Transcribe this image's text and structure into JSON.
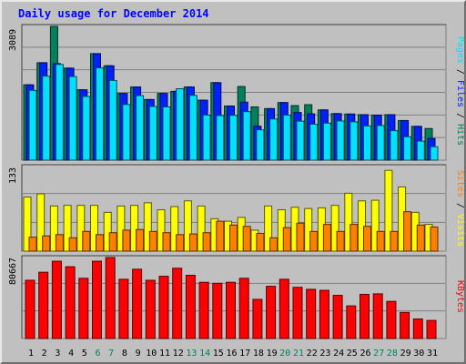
{
  "title": "Daily usage for December 2014",
  "colors": {
    "hits": "#00805c",
    "files": "#0020ff",
    "pages": "#00e0ff",
    "visits": "#ffff00",
    "sites": "#ff8000",
    "kbytes": "#ff0000",
    "weekend_day_label": "#00805c",
    "weekday_label": "#000000"
  },
  "chart_data": [
    {
      "type": "bar",
      "name": "hits-files-pages",
      "categories": [
        "1",
        "2",
        "3",
        "4",
        "5",
        "6",
        "7",
        "8",
        "9",
        "10",
        "11",
        "12",
        "13",
        "14",
        "15",
        "16",
        "17",
        "18",
        "19",
        "20",
        "21",
        "22",
        "23",
        "24",
        "25",
        "26",
        "27",
        "28",
        "29",
        "30",
        "31"
      ],
      "weekend_days": [
        "6",
        "7",
        "13",
        "14",
        "20",
        "21",
        "27",
        "28"
      ],
      "y_max_label": "3089",
      "ylim": [
        0,
        3089
      ],
      "axis_label_parts": [
        "Pages",
        "Files",
        "Hits"
      ],
      "series": [
        {
          "name": "Hits",
          "color": "#00805c",
          "values": [
            1740,
            2250,
            3089,
            2125,
            1625,
            2460,
            2180,
            1540,
            1690,
            1400,
            1540,
            1590,
            1690,
            1385,
            1790,
            1250,
            1700,
            1230,
            1190,
            1330,
            1260,
            1280,
            1160,
            1075,
            1065,
            1050,
            1040,
            1050,
            915,
            780,
            730
          ]
        },
        {
          "name": "Files",
          "color": "#0020ff",
          "values": [
            1740,
            2250,
            2230,
            2125,
            1625,
            2460,
            2180,
            1540,
            1690,
            1400,
            1540,
            1590,
            1690,
            1385,
            1790,
            1250,
            1340,
            785,
            1190,
            1330,
            1100,
            1070,
            1160,
            1075,
            1065,
            1050,
            1040,
            1050,
            915,
            780,
            500
          ]
        },
        {
          "name": "Pages",
          "color": "#00e0ff",
          "values": [
            1610,
            1940,
            2210,
            1930,
            1470,
            2130,
            1840,
            1285,
            1490,
            1240,
            1230,
            1650,
            1495,
            1040,
            1030,
            1035,
            1120,
            700,
            950,
            1040,
            900,
            830,
            855,
            905,
            885,
            790,
            800,
            680,
            540,
            440,
            310
          ]
        }
      ]
    },
    {
      "type": "bar",
      "name": "visits-sites",
      "categories": [
        "1",
        "2",
        "3",
        "4",
        "5",
        "6",
        "7",
        "8",
        "9",
        "10",
        "11",
        "12",
        "13",
        "14",
        "15",
        "16",
        "17",
        "18",
        "19",
        "20",
        "21",
        "22",
        "23",
        "24",
        "25",
        "26",
        "27",
        "28",
        "29",
        "30",
        "31"
      ],
      "y_max_label": "133",
      "ylim": [
        0,
        133
      ],
      "axis_label_parts": [
        "Sites",
        "Visits"
      ],
      "series": [
        {
          "name": "Visits",
          "color": "#ffff00",
          "values": [
            85,
            90,
            71,
            72,
            72,
            72,
            61,
            71,
            72,
            76,
            65,
            70,
            79,
            71,
            51,
            47,
            53,
            33,
            71,
            65,
            69,
            67,
            68,
            72,
            91,
            79,
            80,
            127,
            101,
            61,
            42
          ]
        },
        {
          "name": "Sites",
          "color": "#ff8000",
          "values": [
            22,
            24,
            26,
            21,
            31,
            26,
            29,
            33,
            34,
            31,
            29,
            26,
            27,
            29,
            47,
            41,
            39,
            28,
            21,
            37,
            44,
            31,
            42,
            31,
            42,
            39,
            31,
            31,
            62,
            41,
            38
          ]
        }
      ]
    },
    {
      "type": "bar",
      "name": "kbytes",
      "categories": [
        "1",
        "2",
        "3",
        "4",
        "5",
        "6",
        "7",
        "8",
        "9",
        "10",
        "11",
        "12",
        "13",
        "14",
        "15",
        "16",
        "17",
        "18",
        "19",
        "20",
        "21",
        "22",
        "23",
        "24",
        "25",
        "26",
        "27",
        "28",
        "29",
        "30",
        "31"
      ],
      "y_max_label": "80667",
      "ylim": [
        0,
        80667
      ],
      "axis_label_parts": [
        "KBytes"
      ],
      "series": [
        {
          "name": "KBytes",
          "color": "#ff0000",
          "values": [
            58000,
            66000,
            77000,
            71500,
            60000,
            77000,
            80667,
            59000,
            69000,
            58000,
            62000,
            70000,
            63000,
            56000,
            55000,
            56000,
            60000,
            39000,
            52000,
            59000,
            51000,
            49000,
            48000,
            43000,
            32500,
            44000,
            44500,
            37000,
            26000,
            19500,
            18000
          ]
        }
      ]
    }
  ]
}
